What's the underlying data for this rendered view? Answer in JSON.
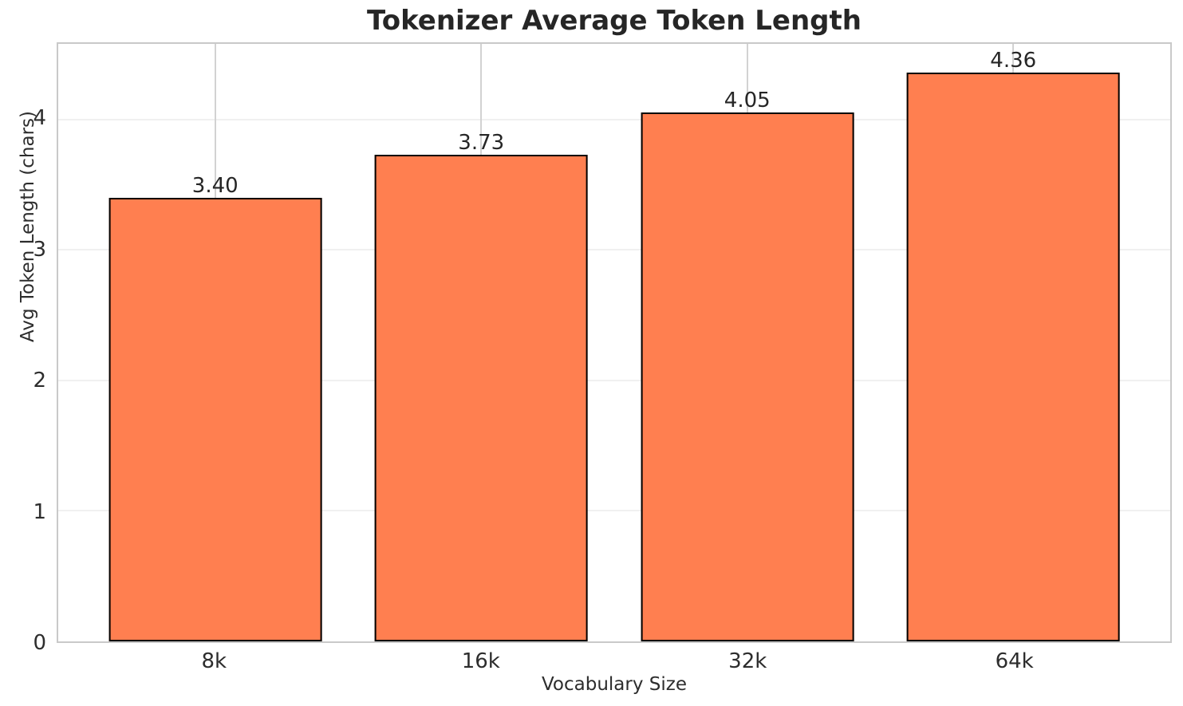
{
  "chart_data": {
    "type": "bar",
    "title": "Tokenizer Average Token Length",
    "xlabel": "Vocabulary Size",
    "ylabel": "Avg Token Length (chars)",
    "categories": [
      "8k",
      "16k",
      "32k",
      "64k"
    ],
    "values": [
      3.4,
      3.73,
      4.05,
      4.36
    ],
    "value_labels": [
      "3.40",
      "3.73",
      "4.05",
      "4.36"
    ],
    "yticks": [
      0,
      1,
      2,
      3,
      4
    ],
    "ytick_labels": [
      "0",
      "1",
      "2",
      "3",
      "4"
    ],
    "ylim": [
      0,
      4.578
    ],
    "grid": "both",
    "legend": "none",
    "colors": {
      "bar_fill": "#FF7F50",
      "bar_edge": "#000000",
      "grid_vertical": "#d2d2d2",
      "grid_horizontal": "#f0f0f0",
      "spine": "#c9c9c9",
      "title_text": "#262626",
      "tick_text": "#2d2d2d",
      "background": "#ffffff"
    }
  }
}
